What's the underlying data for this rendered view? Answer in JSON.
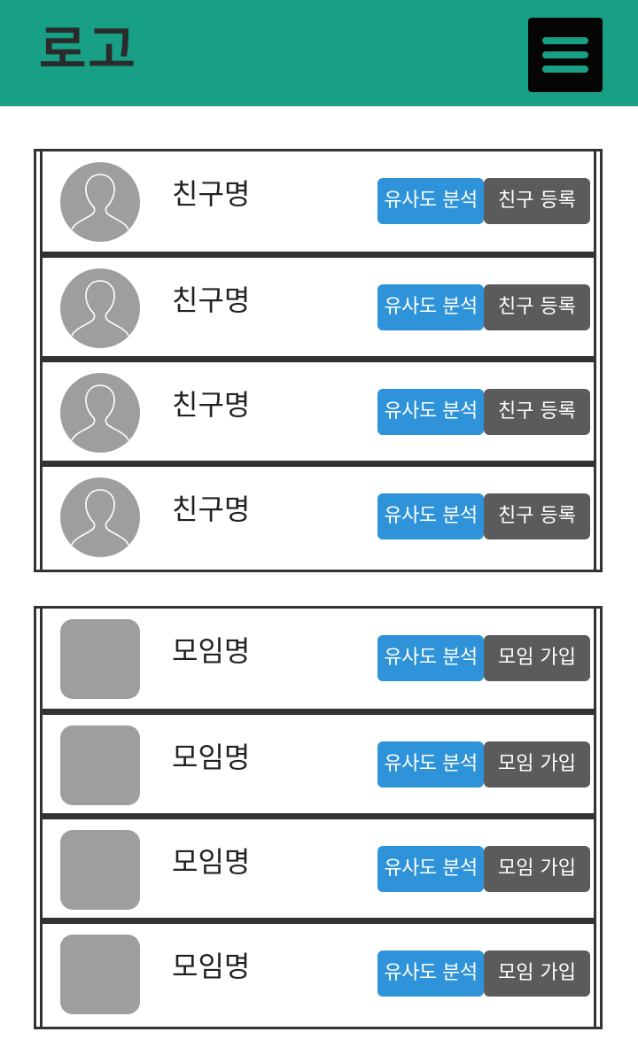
{
  "header": {
    "logo": "로고",
    "menu_icon": "hamburger-menu-icon"
  },
  "friends": {
    "items": [
      {
        "name": "친구명",
        "analyze_label": "유사도 분석",
        "action_label": "친구 등록"
      },
      {
        "name": "친구명",
        "analyze_label": "유사도 분석",
        "action_label": "친구 등록"
      },
      {
        "name": "친구명",
        "analyze_label": "유사도 분석",
        "action_label": "친구 등록"
      },
      {
        "name": "친구명",
        "analyze_label": "유사도 분석",
        "action_label": "친구 등록"
      }
    ]
  },
  "groups": {
    "items": [
      {
        "name": "모임명",
        "analyze_label": "유사도 분석",
        "action_label": "모임 가입"
      },
      {
        "name": "모임명",
        "analyze_label": "유사도 분석",
        "action_label": "모임 가입"
      },
      {
        "name": "모임명",
        "analyze_label": "유사도 분석",
        "action_label": "모임 가입"
      },
      {
        "name": "모임명",
        "analyze_label": "유사도 분석",
        "action_label": "모임 가입"
      }
    ]
  },
  "colors": {
    "header": "#17a085",
    "analyze_button": "#2f93d9",
    "action_button": "#5b5b5b",
    "placeholder": "#9e9e9e"
  }
}
